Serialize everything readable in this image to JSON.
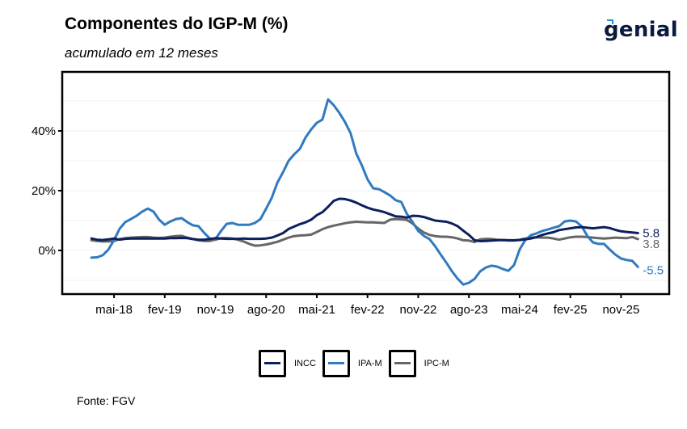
{
  "header": {
    "title": "Componentes do IGP-M (%)",
    "subtitle": "acumulado em 12 meses",
    "logo": "genial",
    "source": "Fonte: FGV"
  },
  "colors": {
    "INCC": "#0d1f5c",
    "IPA-M": "#2f7ac0",
    "IPC-M": "#666666"
  },
  "chart_data": {
    "type": "line",
    "title": "Componentes do IGP-M (%)",
    "subtitle": "acumulado em 12 meses",
    "xlabel": "",
    "ylabel": "",
    "x_start": "jan-18",
    "x_end": "fev-26",
    "x_tick_labels": [
      "mai-18",
      "fev-19",
      "nov-19",
      "ago-20",
      "mai-21",
      "fev-22",
      "nov-22",
      "ago-23",
      "mai-24",
      "fev-25",
      "nov-25"
    ],
    "x_tick_month_index": [
      4,
      13,
      22,
      31,
      40,
      49,
      58,
      67,
      76,
      85,
      94
    ],
    "y_tick_labels": [
      "0%",
      "20%",
      "40%"
    ],
    "y_ticks": [
      0,
      20,
      40
    ],
    "y_minor_gridlines": [
      -10,
      10,
      30,
      50
    ],
    "ylim": [
      -17,
      57
    ],
    "grid": true,
    "legend_position": "bottom",
    "end_labels": [
      {
        "series": "INCC",
        "text": "5.8"
      },
      {
        "series": "IPC-M",
        "text": "3.8"
      },
      {
        "series": "IPA-M",
        "text": "-5.5"
      }
    ],
    "series": [
      {
        "name": "INCC",
        "values": [
          4.0,
          3.6,
          3.5,
          3.7,
          4.0,
          3.6,
          3.9,
          4.0,
          4.0,
          4.0,
          4.0,
          4.0,
          4.0,
          4.0,
          4.1,
          4.1,
          4.2,
          4.1,
          3.8,
          3.6,
          3.6,
          3.8,
          4.1,
          4.0,
          3.9,
          3.9,
          3.9,
          4.0,
          3.9,
          3.9,
          3.9,
          4.0,
          4.3,
          5.0,
          5.8,
          7.2,
          8.0,
          8.8,
          9.4,
          10.3,
          11.8,
          12.8,
          14.6,
          16.6,
          17.3,
          17.2,
          16.7,
          16.0,
          15.1,
          14.3,
          13.7,
          13.3,
          12.8,
          12.1,
          11.4,
          11.3,
          11.0,
          11.6,
          11.5,
          11.2,
          10.6,
          10.0,
          9.8,
          9.6,
          9.0,
          8.1,
          6.6,
          5.2,
          3.4,
          3.1,
          3.2,
          3.3,
          3.4,
          3.5,
          3.4,
          3.4,
          3.5,
          3.7,
          4.0,
          4.5,
          5.2,
          5.7,
          6.1,
          6.8,
          7.1,
          7.4,
          7.7,
          7.8,
          7.6,
          7.4,
          7.6,
          7.8,
          7.5,
          6.9,
          6.4,
          6.2,
          6.0,
          5.8
        ]
      },
      {
        "name": "IPA-M",
        "values": [
          -2.4,
          -2.3,
          -1.6,
          0.3,
          3.5,
          7.3,
          9.5,
          10.5,
          11.6,
          13.0,
          14.0,
          13.0,
          10.3,
          8.6,
          9.7,
          10.5,
          10.8,
          9.5,
          8.4,
          8.1,
          5.9,
          4.0,
          3.8,
          6.5,
          8.9,
          9.2,
          8.6,
          8.6,
          8.6,
          9.2,
          10.5,
          14.0,
          17.6,
          22.7,
          26.2,
          30.0,
          32.2,
          34.0,
          37.8,
          40.5,
          42.7,
          43.8,
          50.5,
          48.6,
          46.0,
          43.0,
          39.2,
          32.4,
          28.4,
          23.8,
          20.8,
          20.5,
          19.5,
          18.4,
          16.8,
          16.2,
          12.2,
          9.5,
          6.5,
          4.9,
          3.8,
          1.4,
          -1.4,
          -4.1,
          -7.0,
          -9.5,
          -11.4,
          -10.8,
          -9.5,
          -7.0,
          -5.7,
          -5.1,
          -5.4,
          -6.2,
          -6.8,
          -4.9,
          0.3,
          3.5,
          5.1,
          5.7,
          6.5,
          7.0,
          7.6,
          8.1,
          9.7,
          10.0,
          9.7,
          8.1,
          4.9,
          2.7,
          2.2,
          2.2,
          0.3,
          -1.4,
          -2.7,
          -3.2,
          -3.5,
          -5.5
        ]
      },
      {
        "name": "IPC-M",
        "values": [
          3.4,
          3.2,
          3.0,
          3.0,
          3.2,
          3.8,
          4.1,
          4.3,
          4.4,
          4.5,
          4.5,
          4.3,
          4.2,
          4.3,
          4.6,
          4.8,
          4.9,
          4.3,
          3.8,
          3.4,
          3.2,
          3.2,
          3.6,
          4.1,
          4.1,
          4.0,
          3.6,
          3.0,
          2.2,
          1.6,
          1.7,
          2.0,
          2.4,
          2.9,
          3.6,
          4.3,
          4.8,
          5.0,
          5.1,
          5.3,
          6.2,
          7.1,
          7.8,
          8.3,
          8.7,
          9.1,
          9.4,
          9.6,
          9.5,
          9.4,
          9.4,
          9.3,
          9.2,
          10.3,
          10.5,
          10.4,
          10.2,
          9.0,
          7.3,
          6.0,
          5.2,
          4.8,
          4.6,
          4.6,
          4.4,
          4.0,
          3.4,
          3.3,
          2.8,
          3.7,
          3.9,
          3.8,
          3.6,
          3.5,
          3.3,
          3.3,
          3.6,
          4.0,
          4.3,
          4.4,
          4.3,
          4.3,
          4.0,
          3.6,
          4.0,
          4.4,
          4.6,
          4.6,
          4.5,
          4.3,
          4.1,
          4.0,
          4.1,
          4.3,
          4.2,
          4.1,
          4.5,
          3.8
        ]
      }
    ]
  },
  "legend": {
    "items": [
      {
        "label": "INCC"
      },
      {
        "label": "IPA-M"
      },
      {
        "label": "IPC-M"
      }
    ]
  }
}
